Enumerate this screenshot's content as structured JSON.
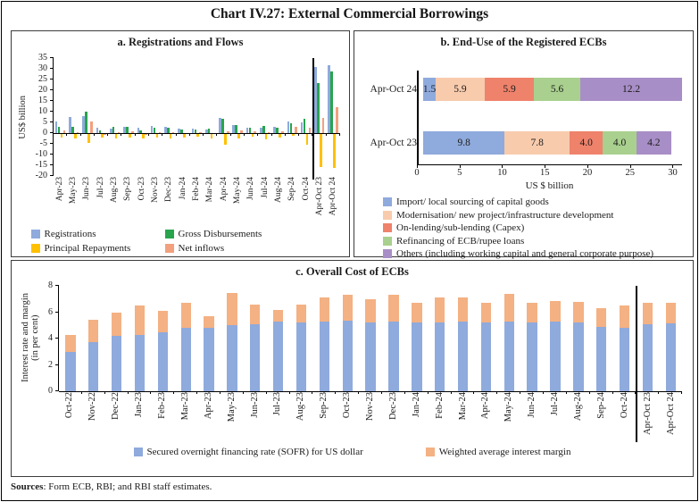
{
  "page": {
    "title": "Chart IV.27: External Commercial Borrowings",
    "sources_bold": "Sources",
    "sources_text": ": Form ECB, RBI; and RBI staff estimates."
  },
  "chart_data": [
    {
      "id": "registrations-and-flows",
      "type": "bar",
      "title": "a. Registrations and Flows",
      "ylabel": "US$ billion",
      "ylim": [
        -20,
        35
      ],
      "ytick_step": 5,
      "grid": false,
      "legend_position": "bottom",
      "categories": [
        "Apr-23",
        "May-23",
        "Jun-23",
        "Jul-23",
        "Aug-23",
        "Sep-23",
        "Oct-23",
        "Nov-23",
        "Dec-23",
        "Jan-24",
        "Feb-24",
        "Mar-24",
        "Apr-24",
        "May-24",
        "Jun-24",
        "Jul-24",
        "Aug-24",
        "Sep-24",
        "Oct-24",
        "Apr-Oct 23",
        "Apr-Oct 24"
      ],
      "separator_before": "Apr-Oct 23",
      "series": [
        {
          "name": "Registrations",
          "color": "#8FAADC",
          "values": [
            5.3,
            7.6,
            7.9,
            2.5,
            1.9,
            2.8,
            2.7,
            3.3,
            2.8,
            2.0,
            2.0,
            1.5,
            7.1,
            3.7,
            2.7,
            2.5,
            3.0,
            5.3,
            4.8,
            31.0,
            31.5
          ]
        },
        {
          "name": "Gross Disbursements",
          "color": "#28A44D",
          "values": [
            2.8,
            3.0,
            9.8,
            1.3,
            2.9,
            3.1,
            1.4,
            2.5,
            2.5,
            1.5,
            1.8,
            2.2,
            6.5,
            3.7,
            2.3,
            3.4,
            2.7,
            4.4,
            6.8,
            23.2,
            28.6
          ]
        },
        {
          "name": "Principal Repayments",
          "color": "#FFC000",
          "values": [
            -2.0,
            -2.7,
            -4.7,
            -2.1,
            -2.6,
            -2.2,
            -2.4,
            -2.1,
            -2.3,
            -2.0,
            -1.5,
            -2.5,
            -5.6,
            -2.5,
            -1.5,
            -2.8,
            -2.0,
            -1.3,
            -5.4,
            -15.7,
            -16.4
          ]
        },
        {
          "name": "Net inflows",
          "color": "#F2A07E",
          "values": [
            1.3,
            0.4,
            5.3,
            -0.9,
            0.6,
            1.0,
            -0.8,
            0.5,
            0.3,
            -0.4,
            0.3,
            -0.3,
            1.0,
            1.3,
            0.9,
            0.6,
            0.8,
            3.1,
            2.6,
            6.9,
            11.9
          ]
        }
      ]
    },
    {
      "id": "end-use",
      "type": "stacked_bar_horizontal",
      "title": "b. End-Use of the Registered ECBs",
      "xlabel": "US $ billion",
      "xlim": [
        0,
        30
      ],
      "xticks": [
        0,
        5,
        10,
        15,
        20,
        25,
        30
      ],
      "legend_position": "bottom",
      "categories": [
        "Apr-Oct 24",
        "Apr-Oct 23"
      ],
      "series": [
        {
          "name": "Import/ local sourcing of capital goods",
          "color": "#8FAADC",
          "values": [
            1.5,
            9.8
          ]
        },
        {
          "name": "Modernisation/ new project/infrastructure development",
          "color": "#F8CBAD",
          "values": [
            5.9,
            7.8
          ]
        },
        {
          "name": "On-lending/sub-lending (Capex)",
          "color": "#EF826B",
          "values": [
            5.9,
            4.0
          ]
        },
        {
          "name": "Refinancing of ECB/rupee loans",
          "color": "#A9D08E",
          "values": [
            5.6,
            4.0
          ]
        },
        {
          "name": "Others (including working capital and general corporate purpose)",
          "color": "#A88EC6",
          "values": [
            12.2,
            4.2
          ]
        }
      ]
    },
    {
      "id": "overall-cost",
      "type": "stacked_bar",
      "title": "c. Overall Cost of ECBs",
      "ylabel1": "Interest rate and margin",
      "ylabel2": "(in per cent)",
      "ylim": [
        0,
        8
      ],
      "ytick_step": 2,
      "grid": false,
      "legend_position": "bottom",
      "categories": [
        "Oct-22",
        "Nov-22",
        "Dec-22",
        "Jan-23",
        "Feb-23",
        "Mar-23",
        "Apr-23",
        "May-23",
        "Jun-23",
        "Jul-23",
        "Aug-23",
        "Sep-23",
        "Oct-23",
        "Nov-23",
        "Dec-23",
        "Jan-24",
        "Feb-24",
        "Mar-24",
        "Apr-24",
        "May-24",
        "Jun-24",
        "Jul-24",
        "Aug-24",
        "Sep-24",
        "Oct-24",
        "Apr-Oct 23",
        "Apr-Oct 24"
      ],
      "separator_before": "Apr-Oct 23",
      "series": [
        {
          "name": "Secured overnight financing rate (SOFR) for US dollar",
          "color": "#8FAADC",
          "values": [
            3.0,
            3.75,
            4.2,
            4.3,
            4.5,
            4.8,
            4.8,
            5.05,
            5.1,
            5.3,
            5.25,
            5.3,
            5.35,
            5.25,
            5.3,
            5.2,
            5.25,
            5.3,
            5.25,
            5.3,
            5.25,
            5.3,
            5.2,
            4.9,
            4.8,
            5.1,
            5.15
          ]
        },
        {
          "name": "Weighted average interest margin",
          "color": "#F4B183",
          "values": [
            1.3,
            1.65,
            1.8,
            2.2,
            1.6,
            1.9,
            0.9,
            2.4,
            1.5,
            0.9,
            1.35,
            1.8,
            2.0,
            1.75,
            2.0,
            1.5,
            1.85,
            1.8,
            1.45,
            2.1,
            1.45,
            1.55,
            1.6,
            1.4,
            1.7,
            1.6,
            1.55
          ]
        }
      ]
    }
  ]
}
